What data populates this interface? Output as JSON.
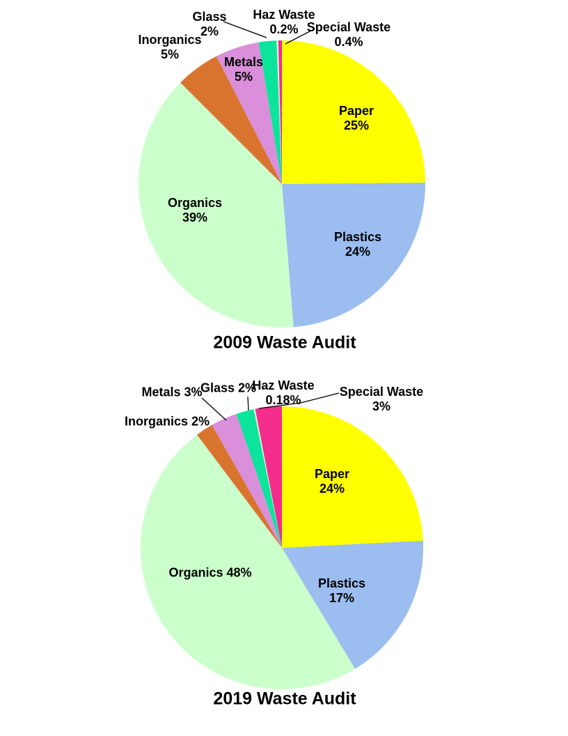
{
  "page": {
    "background": "#FFFFFF",
    "text_color": "#000000",
    "leader_line_color": "#000000"
  },
  "chart_data": [
    {
      "type": "pie",
      "title": "2009 Waste Audit",
      "legend": "none",
      "start_angle_deg": 0,
      "direction": "clockwise",
      "categories": [
        "Paper",
        "Plastics",
        "Organics",
        "Inorganics",
        "Metals",
        "Glass",
        "Haz Waste",
        "Special Waste"
      ],
      "values": [
        25,
        24,
        39,
        5,
        5,
        2,
        0.2,
        0.4
      ],
      "colors": [
        "#FFFF00",
        "#9BBDF0",
        "#CBFFCB",
        "#D9742F",
        "#D98FD9",
        "#0BE49A",
        "#DCEEDC",
        "#F42C8B"
      ],
      "labels": {
        "paper": {
          "name": "Paper",
          "pct": "25%"
        },
        "plastics": {
          "name": "Plastics",
          "pct": "24%"
        },
        "organics": {
          "name": "Organics",
          "pct": "39%"
        },
        "inorganics": {
          "name": "Inorganics",
          "pct": "5%"
        },
        "metals": {
          "name": "Metals",
          "pct": "5%"
        },
        "glass": {
          "name": "Glass",
          "pct": "2%"
        },
        "haz": {
          "name": "Haz Waste",
          "pct": "0.2%"
        },
        "special": {
          "name": "Special Waste",
          "pct": "0.4%"
        }
      }
    },
    {
      "type": "pie",
      "title": "2019 Waste Audit",
      "legend": "none",
      "start_angle_deg": 0,
      "direction": "clockwise",
      "categories": [
        "Paper",
        "Plastics",
        "Organics",
        "Inorganics",
        "Metals",
        "Glass",
        "Haz Waste",
        "Special Waste"
      ],
      "values": [
        24,
        17,
        48,
        2,
        3,
        2,
        0.18,
        3
      ],
      "colors": [
        "#FFFF00",
        "#9BBDF0",
        "#CBFFCB",
        "#D9742F",
        "#D98FD9",
        "#0BE49A",
        "#DCEEDC",
        "#F42C8B"
      ],
      "labels": {
        "paper": {
          "name": "Paper",
          "pct": "24%"
        },
        "plastics": {
          "name": "Plastics",
          "pct": "17%"
        },
        "organics": {
          "name": "Organics",
          "pct": "48%"
        },
        "inorganics": {
          "name": "Inorganics",
          "pct": "2%"
        },
        "metals": {
          "name": "Metals",
          "pct": "3%"
        },
        "glass": {
          "name": "Glass",
          "pct": "2%"
        },
        "haz": {
          "name": "Haz Waste",
          "pct": "0.18%"
        },
        "special": {
          "name": "Special Waste",
          "pct": "3%"
        }
      }
    }
  ]
}
